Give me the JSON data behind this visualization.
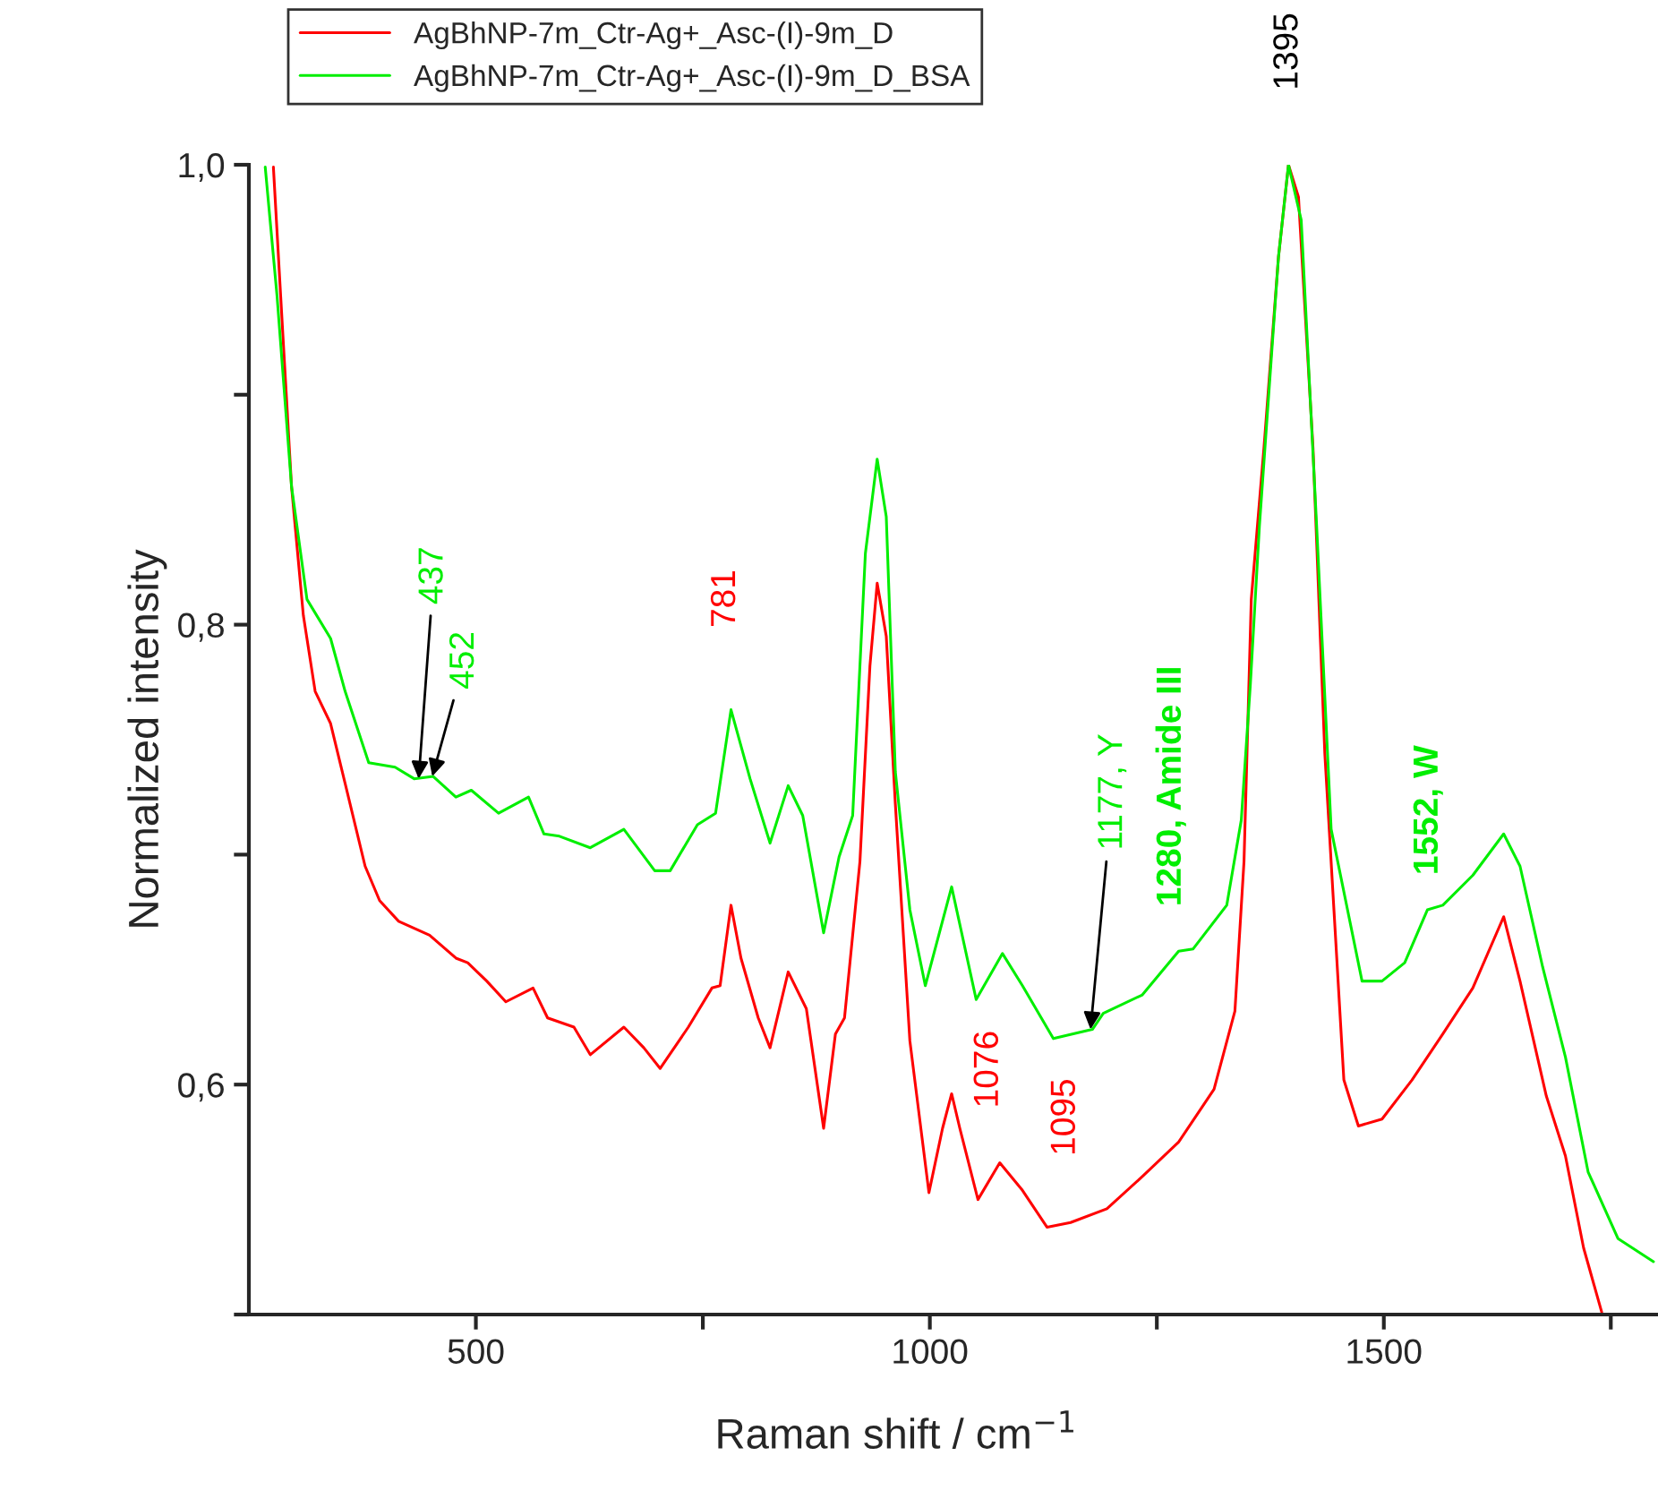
{
  "chart_data": {
    "type": "line",
    "xlabel": "Raman shift / cm$^{−1}$",
    "ylabel": "Normalized intensity",
    "xlim": [
      250,
      1800
    ],
    "ylim": [
      0.5,
      1.0
    ],
    "xticks": [
      {
        "value": 750,
        "label": null
      },
      500,
      1000,
      1500,
      {
        "value": 1250,
        "label": null
      },
      {
        "value": 1750,
        "label": null
      }
    ],
    "yticks": [
      {
        "value": 0.5,
        "label": null
      },
      {
        "value": 0.6,
        "label": "0,6"
      },
      {
        "value": 0.7,
        "label": null
      },
      {
        "value": 0.8,
        "label": "0,8"
      },
      {
        "value": 0.9,
        "label": null
      },
      {
        "value": 1.0,
        "label": "1,0"
      }
    ],
    "grid": false,
    "legend": "top",
    "marker": "none",
    "line_style": "solid",
    "series": [
      {
        "name": "AgBhNP-7m_Ctr-Ag+_Asc-(I)-9m_D",
        "color": "#ff0000",
        "x": [
          277,
          285,
          297,
          310,
          323,
          340,
          356,
          378,
          394,
          415,
          449,
          478,
          491,
          512,
          533,
          563,
          579,
          608,
          626,
          663,
          685,
          703,
          734,
          760,
          769,
          781,
          792,
          811,
          824,
          844,
          864,
          883,
          896,
          906,
          923,
          934,
          942,
          952,
          962,
          978,
          999,
          1014,
          1024,
          1033,
          1053,
          1077,
          1102,
          1129,
          1155,
          1195,
          1234,
          1274,
          1313,
          1336,
          1346,
          1354,
          1368,
          1384,
          1395,
          1406,
          1422,
          1435,
          1456,
          1472,
          1498,
          1531,
          1565,
          1598,
          1632,
          1650,
          1679,
          1700,
          1720,
          1740
        ],
        "values": [
          0.999,
          0.943,
          0.86,
          0.804,
          0.771,
          0.757,
          0.731,
          0.695,
          0.68,
          0.671,
          0.665,
          0.655,
          0.653,
          0.645,
          0.636,
          0.642,
          0.629,
          0.625,
          0.613,
          0.625,
          0.616,
          0.607,
          0.625,
          0.642,
          0.643,
          0.678,
          0.655,
          0.629,
          0.616,
          0.649,
          0.633,
          0.581,
          0.622,
          0.629,
          0.697,
          0.782,
          0.818,
          0.795,
          0.722,
          0.619,
          0.553,
          0.581,
          0.596,
          0.581,
          0.55,
          0.566,
          0.554,
          0.538,
          0.54,
          0.546,
          0.56,
          0.575,
          0.598,
          0.632,
          0.697,
          0.811,
          0.877,
          0.96,
          1.0,
          0.986,
          0.877,
          0.744,
          0.602,
          0.582,
          0.585,
          0.602,
          0.622,
          0.642,
          0.673,
          0.645,
          0.595,
          0.569,
          0.529,
          0.501
        ]
      },
      {
        "name": "AgBhNP-7m_Ctr-Ag+_Asc-(I)-9m_D_BSA",
        "color": "#00ee00",
        "x": [
          268,
          281,
          297,
          314,
          340,
          356,
          382,
          411,
          432,
          453,
          478,
          495,
          525,
          558,
          575,
          592,
          626,
          663,
          697,
          714,
          744,
          764,
          781,
          802,
          824,
          844,
          860,
          883,
          900,
          915,
          929,
          942,
          952,
          962,
          978,
          995,
          1024,
          1051,
          1080,
          1102,
          1136,
          1179,
          1191,
          1234,
          1274,
          1290,
          1327,
          1343,
          1353,
          1363,
          1384,
          1395,
          1409,
          1426,
          1442,
          1476,
          1498,
          1523,
          1548,
          1565,
          1598,
          1632,
          1650,
          1675,
          1700,
          1725,
          1758,
          1797
        ],
        "values": [
          0.999,
          0.943,
          0.86,
          0.811,
          0.794,
          0.771,
          0.74,
          0.738,
          0.733,
          0.734,
          0.725,
          0.728,
          0.718,
          0.725,
          0.709,
          0.708,
          0.703,
          0.711,
          0.693,
          0.693,
          0.713,
          0.718,
          0.763,
          0.733,
          0.705,
          0.73,
          0.717,
          0.666,
          0.699,
          0.717,
          0.831,
          0.872,
          0.847,
          0.736,
          0.676,
          0.643,
          0.686,
          0.637,
          0.657,
          0.643,
          0.62,
          0.624,
          0.631,
          0.639,
          0.658,
          0.659,
          0.678,
          0.715,
          0.774,
          0.843,
          0.96,
          1.0,
          0.976,
          0.843,
          0.711,
          0.645,
          0.645,
          0.653,
          0.676,
          0.678,
          0.691,
          0.709,
          0.695,
          0.651,
          0.612,
          0.562,
          0.533,
          0.523
        ]
      }
    ],
    "annotations": [
      {
        "text": "1395",
        "x": 1395,
        "y": 1.0
      },
      {
        "text": "437",
        "x": 437,
        "y": 0.733
      },
      {
        "text": "452",
        "x": 452,
        "y": 0.734
      },
      {
        "text": "781",
        "x": 781,
        "y": 0.763
      },
      {
        "text": "1076",
        "x": 1076,
        "y": 0.566
      },
      {
        "text": "1095",
        "x": 1095,
        "y": 0.556
      },
      {
        "text": "1177, Y",
        "x": 1177,
        "y": 0.624
      },
      {
        "text": "1280, Amide III",
        "x": 1280,
        "y": 0.658
      },
      {
        "text": "1552, W",
        "x": 1552,
        "y": 0.676
      }
    ]
  }
}
